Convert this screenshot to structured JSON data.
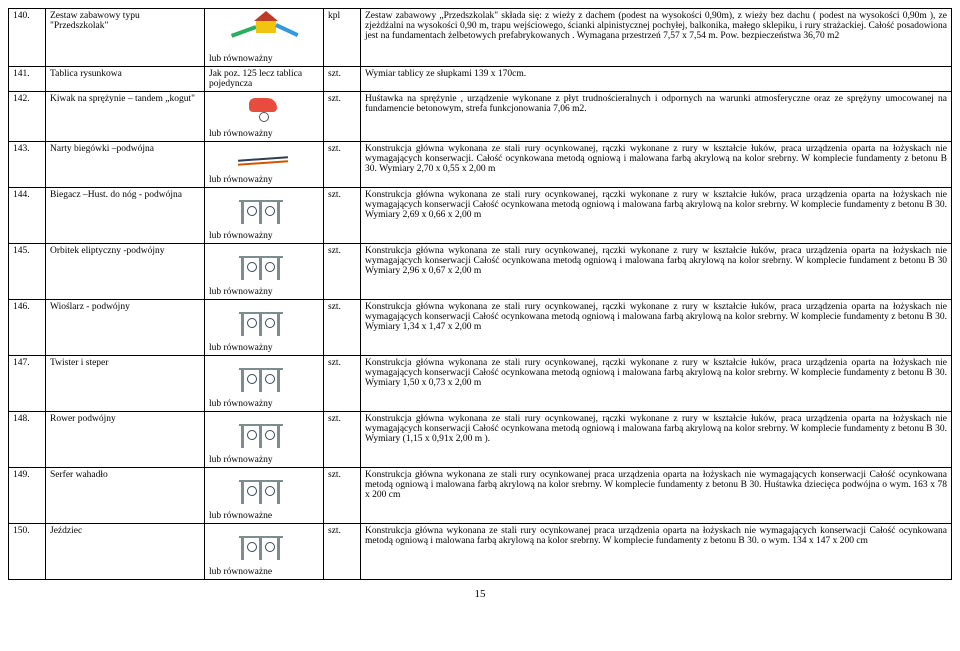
{
  "page_number": "15",
  "equiv_text": "lub równoważny",
  "equiv_text_plural": "lub równoważne",
  "rows": [
    {
      "num": "140.",
      "name": "Zestaw zabawowy typu \"Przedszkolak\"",
      "img": "playground",
      "equiv": "lub równoważny",
      "unit": "kpl",
      "desc": "Zestaw zabawowy „Przedszkolak\" składa się: z wieży z dachem (podest na wysokości 0,90m), z wieży bez dachu ( podest na wysokości 0,90m ), ze zjeżdżalni na wysokości 0,90 m, trapu wejściowego, ścianki alpinistycznej pochyłej, balkonika, małego sklepiku, i rury strażackiej. Całość posadowiona jest na fundamentach żelbetowych prefabrykowanych . Wymagana przestrzeń 7,57 x 7,54 m. Pow. bezpieczeństwa 36,70 m2"
    },
    {
      "num": "141.",
      "name": "Tablica rysunkowa",
      "img_text": "Jak poz. 125 lecz tablica pojedyncza",
      "unit": "szt.",
      "desc": "Wymiar tablicy ze słupkami 139 x 170cm."
    },
    {
      "num": "142.",
      "name": "Kiwak na sprężynie – tandem „kogut\"",
      "img": "spring",
      "equiv": "lub równoważny",
      "unit": "szt.",
      "desc": "Huśtawka na sprężynie , urządzenie wykonane z płyt trudnościeralnych i odpornych na warunki atmosferyczne oraz ze sprężyny umocowanej na fundamencie betonowym, strefa funkcjonowania 7,06 m2."
    },
    {
      "num": "143.",
      "name": "Narty biegówki –podwójna",
      "img": "ski",
      "equiv": "lub równoważny",
      "unit": "szt.",
      "desc": "Konstrukcja główna wykonana ze stali rury ocynkowanej, rączki wykonane z rury w kształcie łuków, praca urządzenia oparta na łożyskach nie wymagających konserwacji. Całość ocynkowana metodą ogniową i malowana farbą akrylową na kolor srebrny. W komplecie fundamenty z betonu B 30. Wymiary 2,70 x 0,55 x 2,00 m"
    },
    {
      "num": "144.",
      "name": "Biegacz –Hust. do nóg - podwójna",
      "img": "equip",
      "equiv": "lub równoważny",
      "unit": "szt.",
      "desc": "Konstrukcja główna wykonana ze stali rury ocynkowanej, rączki wykonane z rury w kształcie łuków, praca urządzenia oparta na łożyskach nie wymagających konserwacji Całość ocynkowana metodą ogniową i malowana farbą akrylową na kolor srebrny. W komplecie fundamenty z betonu B 30. Wymiary 2,69 x 0,66 x 2,00 m"
    },
    {
      "num": "145.",
      "name": "Orbitek eliptyczny -podwójny",
      "img": "equip",
      "equiv": "lub równoważny",
      "unit": "szt.",
      "desc": "Konstrukcja główna wykonana ze stali rury ocynkowanej, rączki wykonane z rury w kształcie łuków, praca urządzenia oparta na łożyskach nie wymagających konserwacji Całość ocynkowana metodą ogniową i malowana farbą akrylową na kolor srebrny. W komplecie fundament z betonu B 30 Wymiary 2,96 x 0,67 x 2,00 m"
    },
    {
      "num": "146.",
      "name": "Wioślarz - podwójny",
      "img": "equip",
      "equiv": "lub równoważny",
      "unit": "szt.",
      "desc": "Konstrukcja główna wykonana ze stali rury ocynkowanej, rączki wykonane z rury w kształcie łuków, praca urządzenia oparta na łożyskach nie wymagających konserwacji Całość ocynkowana metodą ogniową i malowana farbą akrylową na kolor srebrny. W komplecie fundamenty z betonu B 30. Wymiary 1,34 x 1,47 x 2,00 m"
    },
    {
      "num": "147.",
      "name": "Twister i steper",
      "img": "equip",
      "equiv": "lub równoważny",
      "unit": "szt.",
      "desc": "Konstrukcja główna wykonana ze stali rury ocynkowanej, rączki wykonane z rury w kształcie łuków, praca urządzenia oparta na łożyskach nie wymagających konserwacji Całość ocynkowana metodą ogniową i malowana farbą akrylową na kolor srebrny. W komplecie fundamenty z betonu B 30. Wymiary 1,50 x 0,73 x 2,00 m"
    },
    {
      "num": "148.",
      "name": "Rower podwójny",
      "img": "equip",
      "equiv": "lub równoważny",
      "unit": "szt.",
      "desc": "Konstrukcja główna wykonana ze stali rury ocynkowanej, rączki wykonane z rury w kształcie łuków, praca urządzenia oparta na łożyskach nie wymagających konserwacji Całość ocynkowana metodą ogniową i malowana farbą akrylową na kolor srebrny. W komplecie fundamenty z betonu B 30. Wymiary (1,15 x 0,91x 2,00 m )."
    },
    {
      "num": "149.",
      "name": "Serfer wahadło",
      "img": "equip",
      "equiv": "lub równoważne",
      "unit": "szt.",
      "desc": "Konstrukcja główna wykonana ze stali rury ocynkowanej praca urządzenia oparta na łożyskach nie wymagających konserwacji Całość ocynkowana metodą ogniową i malowana farbą akrylową na kolor srebrny. W komplecie fundamenty z betonu B 30. Huśtawka dziecięca podwójna o wym. 163 x 78 x 200 cm"
    },
    {
      "num": "150.",
      "name": "Jeździec",
      "img": "equip",
      "equiv": "lub równoważne",
      "unit": "szt.",
      "desc": "Konstrukcja główna wykonana ze stali rury ocynkowanej praca urządzenia oparta na łożyskach nie wymagających konserwacji Całość ocynkowana metodą ogniową i malowana farbą akrylową na kolor srebrny. W komplecie fundamenty z betonu B 30. o wym. 134 x 147 x 200 cm"
    }
  ]
}
